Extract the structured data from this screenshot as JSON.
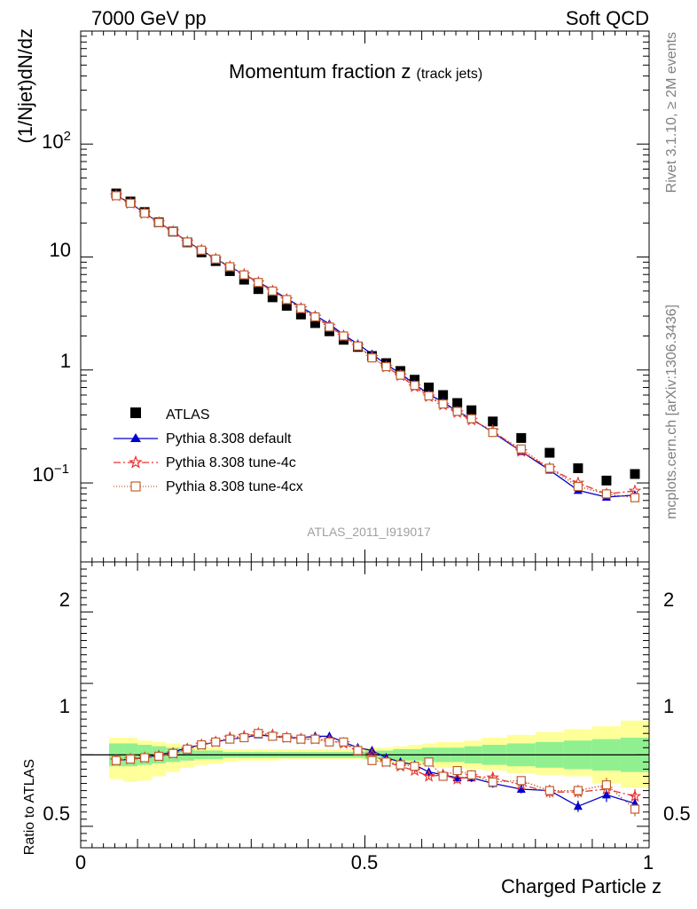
{
  "header": {
    "left": "7000 GeV pp",
    "right": "Soft QCD"
  },
  "side_text": {
    "top": "Rivet 3.1.10, ≥ 2M events",
    "bottom": "mcplots.cern.ch [arXiv:1306.3436]"
  },
  "watermark": "ATLAS_2011_I919017",
  "chart_data": [
    {
      "type": "scatter",
      "title": "Momentum fraction z",
      "title_suffix": "(track jets)",
      "ylabel": "(1/Njet)dN/dz",
      "yscale": "log",
      "xlim": [
        0,
        1
      ],
      "ylim": [
        0.02,
        1000
      ],
      "ytick_labels": [
        "10⁻¹",
        "1",
        "10",
        "10²"
      ],
      "legend_position": "lower-left",
      "x": [
        0.0625,
        0.0875,
        0.1125,
        0.1375,
        0.1625,
        0.1875,
        0.2125,
        0.2375,
        0.2625,
        0.2875,
        0.3125,
        0.3375,
        0.3625,
        0.3875,
        0.4125,
        0.4375,
        0.4625,
        0.4875,
        0.5125,
        0.5375,
        0.5625,
        0.5875,
        0.6125,
        0.6375,
        0.6625,
        0.6875,
        0.725,
        0.775,
        0.825,
        0.875,
        0.925,
        0.975
      ],
      "series": [
        {
          "name": "ATLAS",
          "color": "#000000",
          "marker": "filled-square",
          "values": [
            36.5,
            31.0,
            25.0,
            20.3,
            16.8,
            13.5,
            11.0,
            9.2,
            7.5,
            6.3,
            5.2,
            4.4,
            3.7,
            3.1,
            2.6,
            2.2,
            1.85,
            1.6,
            1.33,
            1.15,
            0.98,
            0.82,
            0.7,
            0.6,
            0.51,
            0.44,
            0.35,
            0.25,
            0.185,
            0.135,
            0.105,
            0.12
          ]
        },
        {
          "name": "Pythia 8.308 default",
          "color": "#0000cc",
          "marker": "filled-triangle",
          "line": "solid",
          "values": [
            35.0,
            30.0,
            24.5,
            20.2,
            16.8,
            13.7,
            11.5,
            9.6,
            8.2,
            7.0,
            6.0,
            5.1,
            4.3,
            3.6,
            3.05,
            2.55,
            2.05,
            1.7,
            1.38,
            1.12,
            0.93,
            0.75,
            0.61,
            0.52,
            0.43,
            0.37,
            0.28,
            0.19,
            0.13,
            0.086,
            0.075,
            0.078
          ]
        },
        {
          "name": "Pythia 8.308 tune-4c",
          "color": "#e83030",
          "marker": "open-star",
          "line": "dashdot",
          "values": [
            34.8,
            29.8,
            24.3,
            20.2,
            16.8,
            13.6,
            11.5,
            9.6,
            8.2,
            7.0,
            5.95,
            5.0,
            4.2,
            3.5,
            2.95,
            2.45,
            2.0,
            1.63,
            1.3,
            1.06,
            0.89,
            0.71,
            0.58,
            0.49,
            0.42,
            0.36,
            0.29,
            0.19,
            0.135,
            0.1,
            0.08,
            0.085
          ]
        },
        {
          "name": "Pythia 8.308 tune-4cx",
          "color": "#c06030",
          "marker": "open-square",
          "line": "dotted",
          "values": [
            34.9,
            29.9,
            24.4,
            20.2,
            16.8,
            13.6,
            11.5,
            9.6,
            8.2,
            6.95,
            5.95,
            5.0,
            4.2,
            3.5,
            2.95,
            2.4,
            2.0,
            1.63,
            1.28,
            1.07,
            0.9,
            0.73,
            0.59,
            0.5,
            0.43,
            0.37,
            0.28,
            0.2,
            0.135,
            0.093,
            0.08,
            0.074
          ]
        }
      ]
    },
    {
      "type": "scatter",
      "ylabel": "Ratio to ATLAS",
      "xlabel": "Charged Particle z",
      "xlim": [
        0,
        1
      ],
      "ylim": [
        0.35,
        2.35
      ],
      "xticks": [
        0,
        0.5,
        1
      ],
      "yticks": [
        0.5,
        1,
        2
      ],
      "reference_line": 1,
      "band_1sigma": {
        "color": "#90f090",
        "lower": [
          0.92,
          0.92,
          0.93,
          0.94,
          0.95,
          0.96,
          0.97,
          0.97,
          0.98,
          0.98,
          0.98,
          0.98,
          0.98,
          0.98,
          0.98,
          0.98,
          0.98,
          0.98,
          0.97,
          0.97,
          0.96,
          0.96,
          0.95,
          0.95,
          0.95,
          0.94,
          0.93,
          0.92,
          0.91,
          0.9,
          0.89,
          0.88
        ],
        "upper": [
          1.08,
          1.08,
          1.07,
          1.06,
          1.05,
          1.04,
          1.03,
          1.03,
          1.02,
          1.02,
          1.02,
          1.02,
          1.02,
          1.02,
          1.02,
          1.02,
          1.02,
          1.02,
          1.03,
          1.03,
          1.04,
          1.04,
          1.05,
          1.05,
          1.05,
          1.06,
          1.07,
          1.08,
          1.09,
          1.1,
          1.11,
          1.12
        ]
      },
      "band_2sigma": {
        "color": "#ffff99",
        "lower": [
          0.83,
          0.81,
          0.82,
          0.85,
          0.88,
          0.91,
          0.93,
          0.94,
          0.95,
          0.96,
          0.96,
          0.96,
          0.97,
          0.97,
          0.97,
          0.97,
          0.97,
          0.97,
          0.96,
          0.95,
          0.94,
          0.93,
          0.92,
          0.91,
          0.91,
          0.9,
          0.89,
          0.87,
          0.86,
          0.85,
          0.8,
          0.77
        ],
        "upper": [
          1.12,
          1.12,
          1.1,
          1.09,
          1.08,
          1.07,
          1.06,
          1.05,
          1.04,
          1.04,
          1.04,
          1.04,
          1.04,
          1.04,
          1.04,
          1.04,
          1.04,
          1.04,
          1.05,
          1.05,
          1.06,
          1.07,
          1.08,
          1.09,
          1.09,
          1.1,
          1.12,
          1.14,
          1.16,
          1.18,
          1.2,
          1.24
        ]
      },
      "series": [
        {
          "name": "Pythia 8.308 default",
          "color": "#0000cc",
          "marker": "filled-triangle",
          "line": "solid",
          "values": [
            0.96,
            0.97,
            0.98,
            1.0,
            1.02,
            1.05,
            1.07,
            1.09,
            1.11,
            1.12,
            1.14,
            1.13,
            1.12,
            1.12,
            1.13,
            1.13,
            1.09,
            1.05,
            1.03,
            0.98,
            0.95,
            0.93,
            0.88,
            0.86,
            0.84,
            0.84,
            0.8,
            0.76,
            0.75,
            0.64,
            0.72,
            0.66
          ],
          "errors": [
            0.01,
            0.01,
            0.01,
            0.01,
            0.01,
            0.01,
            0.01,
            0.01,
            0.01,
            0.01,
            0.01,
            0.01,
            0.01,
            0.01,
            0.01,
            0.01,
            0.01,
            0.01,
            0.01,
            0.02,
            0.02,
            0.02,
            0.02,
            0.02,
            0.03,
            0.03,
            0.03,
            0.03,
            0.04,
            0.04,
            0.05,
            0.05
          ]
        },
        {
          "name": "Pythia 8.308 tune-4c",
          "color": "#e83030",
          "marker": "open-star",
          "line": "dashdot",
          "values": [
            0.96,
            0.97,
            0.98,
            0.99,
            1.01,
            1.04,
            1.07,
            1.09,
            1.12,
            1.13,
            1.15,
            1.14,
            1.12,
            1.11,
            1.11,
            1.1,
            1.08,
            1.03,
            1.0,
            0.95,
            0.92,
            0.89,
            0.85,
            0.86,
            0.83,
            0.85,
            0.84,
            0.79,
            0.74,
            0.74,
            0.76,
            0.71
          ],
          "errors": [
            0.01,
            0.01,
            0.01,
            0.01,
            0.01,
            0.01,
            0.01,
            0.01,
            0.01,
            0.01,
            0.01,
            0.01,
            0.01,
            0.01,
            0.01,
            0.01,
            0.01,
            0.01,
            0.01,
            0.02,
            0.02,
            0.02,
            0.02,
            0.02,
            0.03,
            0.03,
            0.03,
            0.03,
            0.04,
            0.04,
            0.05,
            0.05
          ]
        },
        {
          "name": "Pythia 8.308 tune-4cx",
          "color": "#c06030",
          "marker": "open-square",
          "line": "dotted",
          "values": [
            0.96,
            0.97,
            0.98,
            0.99,
            1.01,
            1.04,
            1.07,
            1.09,
            1.11,
            1.12,
            1.15,
            1.13,
            1.12,
            1.11,
            1.11,
            1.09,
            1.09,
            1.03,
            0.96,
            0.95,
            0.93,
            0.92,
            0.95,
            0.85,
            0.89,
            0.86,
            0.81,
            0.82,
            0.75,
            0.75,
            0.79,
            0.62
          ],
          "errors": [
            0.01,
            0.01,
            0.01,
            0.01,
            0.01,
            0.01,
            0.01,
            0.01,
            0.01,
            0.01,
            0.01,
            0.01,
            0.01,
            0.01,
            0.01,
            0.01,
            0.01,
            0.01,
            0.01,
            0.02,
            0.02,
            0.02,
            0.02,
            0.02,
            0.03,
            0.03,
            0.03,
            0.03,
            0.04,
            0.04,
            0.05,
            0.05
          ]
        }
      ]
    }
  ]
}
